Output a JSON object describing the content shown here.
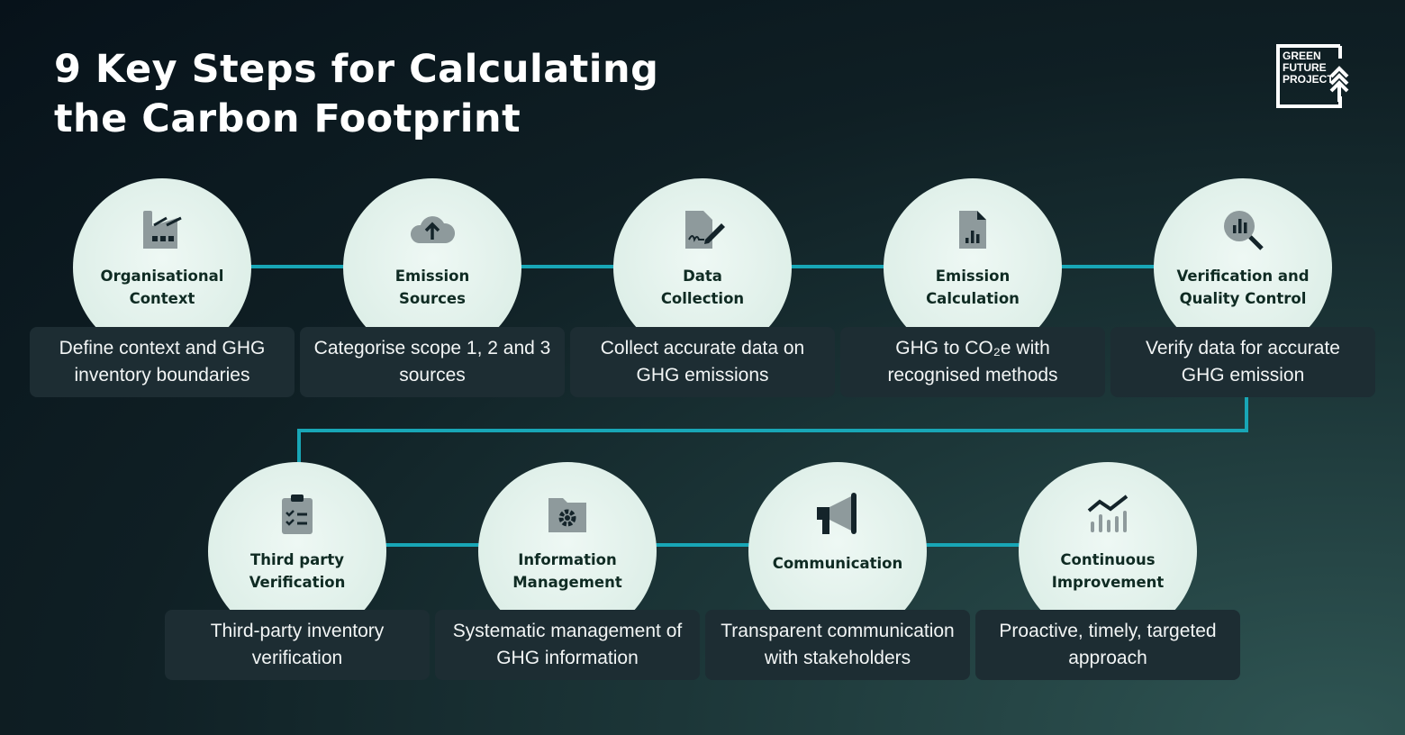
{
  "title": {
    "line1": "9 Key Steps for Calculating",
    "line2": "the Carbon Footprint"
  },
  "logo": {
    "text": "GREEN FUTURE PROJECT"
  },
  "colors": {
    "connector": "#18a6b6",
    "circle": "#e0f0ea",
    "box": "#1d2d33"
  },
  "steps": [
    {
      "title1": "Organisational",
      "title2": "Context",
      "desc1": "Define context and GHG",
      "desc2": "inventory boundaries",
      "icon": "factory-icon"
    },
    {
      "title1": "Emission",
      "title2": "Sources",
      "desc1": "Categorise scope 1, 2 and 3",
      "desc2": "sources",
      "icon": "cloud-upload-icon"
    },
    {
      "title1": "Data",
      "title2": "Collection",
      "desc1": "Collect accurate data on",
      "desc2": "GHG emissions",
      "icon": "document-signature-icon"
    },
    {
      "title1": "Emission",
      "title2": "Calculation",
      "desc1": "GHG to CO₂e with",
      "desc2": "recognised methods",
      "icon": "document-chart-icon"
    },
    {
      "title1": "Verification and",
      "title2": "Quality Control",
      "desc1": "Verify data for accurate",
      "desc2": "GHG emission",
      "icon": "magnifier-chart-icon"
    },
    {
      "title1": "Third party",
      "title2": "Verification",
      "desc1": "Third-party inventory",
      "desc2": "verification",
      "icon": "clipboard-checklist-icon"
    },
    {
      "title1": "Information",
      "title2": "Management",
      "desc1": "Systematic management of",
      "desc2": "GHG information",
      "icon": "folder-gear-icon"
    },
    {
      "title1": "Communication",
      "title2": "",
      "desc1": "Transparent communication",
      "desc2": "with stakeholders",
      "icon": "megaphone-icon"
    },
    {
      "title1": "Continuous",
      "title2": "Improvement",
      "desc1": "Proactive, timely, targeted",
      "desc2": "approach",
      "icon": "trend-chart-icon"
    }
  ]
}
